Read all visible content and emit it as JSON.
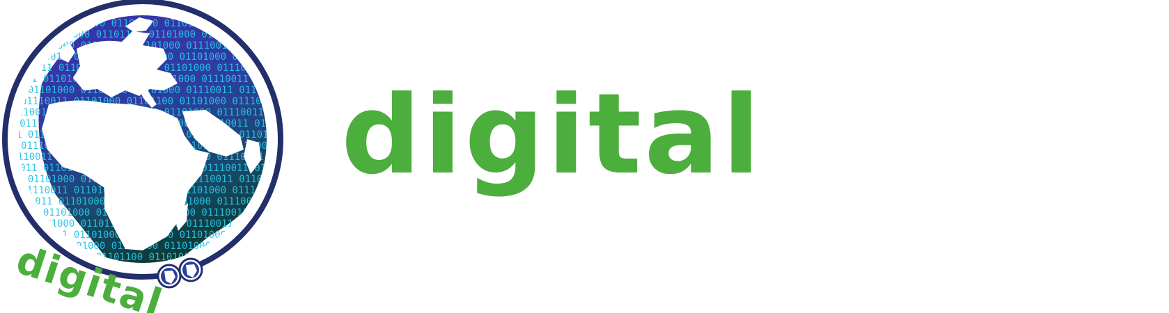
{
  "brand": {
    "wordmark": "digital",
    "emblem_wordmark": "digital",
    "binary_text": "01110011 01101000 01101100 01101000",
    "primary_color": "#4cae3c",
    "ring_color": "#232f6a",
    "ocean_top_color": "#3a3aa8",
    "ocean_bottom_color": "#0d3b3a",
    "binary_color": "#29c3e6",
    "land_color": "#ffffff"
  }
}
